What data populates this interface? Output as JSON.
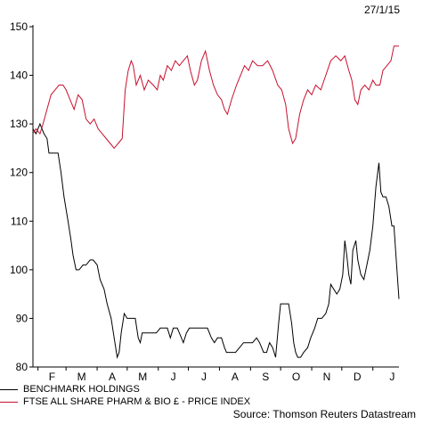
{
  "date_label": "27/1/15",
  "source": "Source: Thomson Reuters Datastream",
  "chart_data": {
    "type": "line",
    "title": "",
    "xlabel": "",
    "ylabel": "",
    "ylim": [
      80,
      150
    ],
    "yticks": [
      80,
      90,
      100,
      110,
      120,
      130,
      140,
      150
    ],
    "x_range": [
      "2014-01-27",
      "2015-01-27"
    ],
    "month_ticks": [
      "F",
      "M",
      "A",
      "M",
      "J",
      "J",
      "A",
      "S",
      "O",
      "N",
      "D",
      "J"
    ],
    "grid": false,
    "legend_position": "bottom-left",
    "series": [
      {
        "name": "BENCHMARK HOLDINGS",
        "color": "#000000",
        "points": [
          [
            "2014-01-27",
            129
          ],
          [
            "2014-01-30",
            128
          ],
          [
            "2014-02-03",
            130
          ],
          [
            "2014-02-05",
            129
          ],
          [
            "2014-02-07",
            128
          ],
          [
            "2014-02-10",
            127
          ],
          [
            "2014-02-12",
            124
          ],
          [
            "2014-02-17",
            124
          ],
          [
            "2014-02-21",
            124
          ],
          [
            "2014-02-24",
            120
          ],
          [
            "2014-02-27",
            115
          ],
          [
            "2014-03-03",
            110
          ],
          [
            "2014-03-06",
            106
          ],
          [
            "2014-03-08",
            103
          ],
          [
            "2014-03-11",
            100
          ],
          [
            "2014-03-14",
            100
          ],
          [
            "2014-03-18",
            101
          ],
          [
            "2014-03-21",
            101
          ],
          [
            "2014-03-25",
            102
          ],
          [
            "2014-03-28",
            102
          ],
          [
            "2014-04-01",
            101
          ],
          [
            "2014-04-04",
            98
          ],
          [
            "2014-04-08",
            96
          ],
          [
            "2014-04-11",
            93
          ],
          [
            "2014-04-15",
            90
          ],
          [
            "2014-04-18",
            86
          ],
          [
            "2014-04-21",
            82
          ],
          [
            "2014-04-23",
            83
          ],
          [
            "2014-04-25",
            87
          ],
          [
            "2014-04-28",
            91
          ],
          [
            "2014-05-01",
            90
          ],
          [
            "2014-05-06",
            90
          ],
          [
            "2014-05-09",
            90
          ],
          [
            "2014-05-12",
            86
          ],
          [
            "2014-05-14",
            85
          ],
          [
            "2014-05-16",
            87
          ],
          [
            "2014-05-20",
            87
          ],
          [
            "2014-05-25",
            87
          ],
          [
            "2014-05-30",
            87
          ],
          [
            "2014-06-03",
            88
          ],
          [
            "2014-06-06",
            88
          ],
          [
            "2014-06-10",
            88
          ],
          [
            "2014-06-13",
            86
          ],
          [
            "2014-06-16",
            88
          ],
          [
            "2014-06-20",
            88
          ],
          [
            "2014-06-24",
            86
          ],
          [
            "2014-06-26",
            85
          ],
          [
            "2014-06-29",
            87
          ],
          [
            "2014-07-02",
            88
          ],
          [
            "2014-07-06",
            88
          ],
          [
            "2014-07-11",
            88
          ],
          [
            "2014-07-16",
            88
          ],
          [
            "2014-07-20",
            88
          ],
          [
            "2014-07-24",
            86
          ],
          [
            "2014-07-27",
            85
          ],
          [
            "2014-07-30",
            86
          ],
          [
            "2014-08-03",
            86
          ],
          [
            "2014-08-06",
            84
          ],
          [
            "2014-08-08",
            83
          ],
          [
            "2014-08-12",
            83
          ],
          [
            "2014-08-17",
            83
          ],
          [
            "2014-08-21",
            84
          ],
          [
            "2014-08-25",
            85
          ],
          [
            "2014-08-29",
            85
          ],
          [
            "2014-09-03",
            85
          ],
          [
            "2014-09-07",
            86
          ],
          [
            "2014-09-10",
            85
          ],
          [
            "2014-09-14",
            83
          ],
          [
            "2014-09-17",
            83
          ],
          [
            "2014-09-20",
            85
          ],
          [
            "2014-09-23",
            84
          ],
          [
            "2014-09-26",
            82
          ],
          [
            "2014-09-29",
            89
          ],
          [
            "2014-10-01",
            93
          ],
          [
            "2014-10-06",
            93
          ],
          [
            "2014-10-09",
            93
          ],
          [
            "2014-10-12",
            89
          ],
          [
            "2014-10-14",
            85
          ],
          [
            "2014-10-16",
            83
          ],
          [
            "2014-10-18",
            82
          ],
          [
            "2014-10-21",
            82
          ],
          [
            "2014-10-24",
            83
          ],
          [
            "2014-10-28",
            84
          ],
          [
            "2014-10-31",
            86
          ],
          [
            "2014-11-04",
            88
          ],
          [
            "2014-11-07",
            90
          ],
          [
            "2014-11-11",
            90
          ],
          [
            "2014-11-15",
            91
          ],
          [
            "2014-11-18",
            93
          ],
          [
            "2014-11-20",
            97
          ],
          [
            "2014-11-23",
            96
          ],
          [
            "2014-11-26",
            95
          ],
          [
            "2014-11-29",
            96
          ],
          [
            "2014-12-02",
            99
          ],
          [
            "2014-12-04",
            106
          ],
          [
            "2014-12-06",
            103
          ],
          [
            "2014-12-08",
            99
          ],
          [
            "2014-12-10",
            97
          ],
          [
            "2014-12-12",
            104
          ],
          [
            "2014-12-15",
            106
          ],
          [
            "2014-12-17",
            102
          ],
          [
            "2014-12-20",
            99
          ],
          [
            "2014-12-23",
            98
          ],
          [
            "2014-12-26",
            101
          ],
          [
            "2014-12-29",
            104
          ],
          [
            "2015-01-01",
            109
          ],
          [
            "2015-01-04",
            117
          ],
          [
            "2015-01-07",
            122
          ],
          [
            "2015-01-09",
            116
          ],
          [
            "2015-01-11",
            115
          ],
          [
            "2015-01-14",
            115
          ],
          [
            "2015-01-17",
            113
          ],
          [
            "2015-01-20",
            109
          ],
          [
            "2015-01-22",
            109
          ],
          [
            "2015-01-24",
            103
          ],
          [
            "2015-01-27",
            94
          ]
        ]
      },
      {
        "name": "FTSE ALL SHARE PHARM & BIO £ - PRICE INDEX",
        "color": "#c8102e",
        "points": [
          [
            "2014-01-27",
            128
          ],
          [
            "2014-01-30",
            129
          ],
          [
            "2014-02-03",
            128
          ],
          [
            "2014-02-06",
            130
          ],
          [
            "2014-02-10",
            133
          ],
          [
            "2014-02-14",
            136
          ],
          [
            "2014-02-18",
            137
          ],
          [
            "2014-02-22",
            138
          ],
          [
            "2014-02-26",
            138
          ],
          [
            "2014-03-01",
            137
          ],
          [
            "2014-03-05",
            135
          ],
          [
            "2014-03-09",
            133
          ],
          [
            "2014-03-13",
            136
          ],
          [
            "2014-03-17",
            135
          ],
          [
            "2014-03-21",
            131
          ],
          [
            "2014-03-25",
            130
          ],
          [
            "2014-03-29",
            131
          ],
          [
            "2014-04-02",
            129
          ],
          [
            "2014-04-06",
            128
          ],
          [
            "2014-04-10",
            127
          ],
          [
            "2014-04-14",
            126
          ],
          [
            "2014-04-18",
            125
          ],
          [
            "2014-04-22",
            126
          ],
          [
            "2014-04-26",
            127
          ],
          [
            "2014-04-29",
            137
          ],
          [
            "2014-05-02",
            141
          ],
          [
            "2014-05-05",
            143
          ],
          [
            "2014-05-07",
            142
          ],
          [
            "2014-05-10",
            138
          ],
          [
            "2014-05-14",
            140
          ],
          [
            "2014-05-18",
            137
          ],
          [
            "2014-05-22",
            139
          ],
          [
            "2014-05-27",
            138
          ],
          [
            "2014-05-31",
            137
          ],
          [
            "2014-06-03",
            140
          ],
          [
            "2014-06-06",
            139
          ],
          [
            "2014-06-10",
            142
          ],
          [
            "2014-06-14",
            141
          ],
          [
            "2014-06-18",
            143
          ],
          [
            "2014-06-22",
            142
          ],
          [
            "2014-06-26",
            143
          ],
          [
            "2014-06-30",
            144
          ],
          [
            "2014-07-03",
            141
          ],
          [
            "2014-07-07",
            138
          ],
          [
            "2014-07-10",
            139
          ],
          [
            "2014-07-14",
            143
          ],
          [
            "2014-07-18",
            145
          ],
          [
            "2014-07-22",
            141
          ],
          [
            "2014-07-26",
            138
          ],
          [
            "2014-07-30",
            136
          ],
          [
            "2014-08-03",
            135
          ],
          [
            "2014-08-06",
            133
          ],
          [
            "2014-08-09",
            132
          ],
          [
            "2014-08-13",
            135
          ],
          [
            "2014-08-18",
            138
          ],
          [
            "2014-08-22",
            140
          ],
          [
            "2014-08-26",
            142
          ],
          [
            "2014-08-30",
            141
          ],
          [
            "2014-09-03",
            143
          ],
          [
            "2014-09-08",
            142
          ],
          [
            "2014-09-13",
            142
          ],
          [
            "2014-09-18",
            143
          ],
          [
            "2014-09-23",
            141
          ],
          [
            "2014-09-28",
            138
          ],
          [
            "2014-10-02",
            137
          ],
          [
            "2014-10-06",
            134
          ],
          [
            "2014-10-09",
            129
          ],
          [
            "2014-10-13",
            126
          ],
          [
            "2014-10-16",
            127
          ],
          [
            "2014-10-20",
            132
          ],
          [
            "2014-10-24",
            135
          ],
          [
            "2014-10-28",
            137
          ],
          [
            "2014-11-01",
            136
          ],
          [
            "2014-11-05",
            138
          ],
          [
            "2014-11-10",
            137
          ],
          [
            "2014-11-15",
            140
          ],
          [
            "2014-11-20",
            143
          ],
          [
            "2014-11-25",
            144
          ],
          [
            "2014-11-30",
            143
          ],
          [
            "2014-12-04",
            144
          ],
          [
            "2014-12-08",
            141
          ],
          [
            "2014-12-11",
            139
          ],
          [
            "2014-12-14",
            135
          ],
          [
            "2014-12-17",
            134
          ],
          [
            "2014-12-20",
            137
          ],
          [
            "2014-12-24",
            138
          ],
          [
            "2014-12-28",
            137
          ],
          [
            "2015-01-01",
            139
          ],
          [
            "2015-01-04",
            138
          ],
          [
            "2015-01-08",
            138
          ],
          [
            "2015-01-11",
            141
          ],
          [
            "2015-01-15",
            142
          ],
          [
            "2015-01-19",
            143
          ],
          [
            "2015-01-22",
            146
          ],
          [
            "2015-01-25",
            146
          ],
          [
            "2015-01-27",
            146
          ]
        ]
      }
    ]
  }
}
